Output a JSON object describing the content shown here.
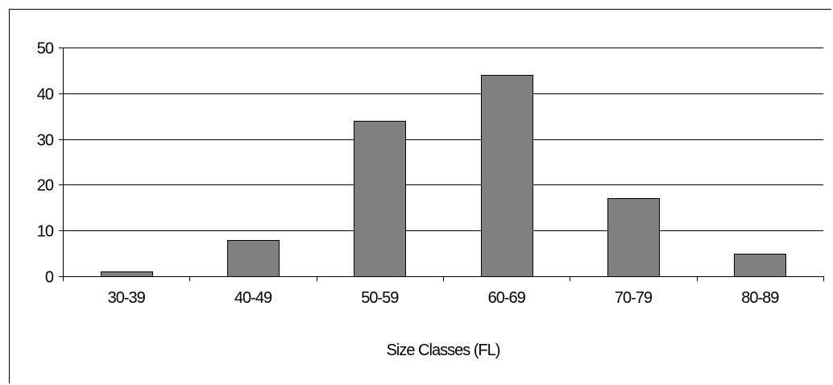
{
  "chart_data": {
    "type": "bar",
    "categories": [
      "30-39",
      "40-49",
      "50-59",
      "60-69",
      "70-79",
      "80-89"
    ],
    "values": [
      1,
      8,
      34,
      44,
      17,
      5
    ],
    "title": "",
    "xlabel": "Size Classes (FL)",
    "ylabel": "",
    "ylim": [
      0,
      50
    ],
    "yticks": [
      0,
      10,
      20,
      30,
      40,
      50
    ],
    "grid": true,
    "legend": "none",
    "colors": {
      "bar_fill": "#808080",
      "bar_stroke": "#000000",
      "grid": "#000000",
      "axis": "#000000",
      "background": "#ffffff"
    }
  }
}
